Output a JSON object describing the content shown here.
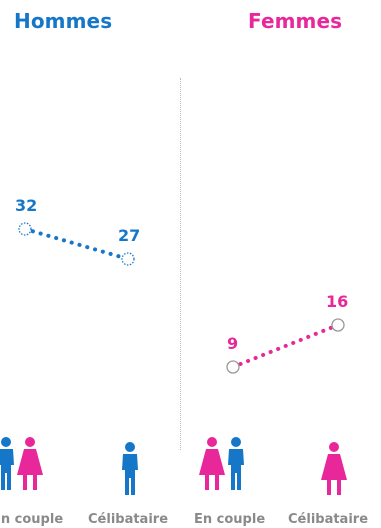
{
  "panels": {
    "men": {
      "title": "Hommes"
    },
    "women": {
      "title": "Femmes"
    }
  },
  "categories": [
    "En couple",
    "Célibataire",
    "En couple",
    "Célibataire"
  ],
  "colors": {
    "men": "#1677c8",
    "women": "#e8279a",
    "open_marker": "#999999"
  },
  "icons": [
    "couple-icon",
    "single-man-icon",
    "couple-icon",
    "single-woman-icon"
  ],
  "chart_data": [
    {
      "type": "line",
      "title": "Hommes",
      "categories": [
        "En couple",
        "Célibataire"
      ],
      "series": [
        {
          "values": [
            32,
            27
          ]
        }
      ]
    },
    {
      "type": "line",
      "title": "Femmes",
      "categories": [
        "En couple",
        "Célibataire"
      ],
      "series": [
        {
          "values": [
            9,
            16
          ]
        }
      ]
    }
  ]
}
